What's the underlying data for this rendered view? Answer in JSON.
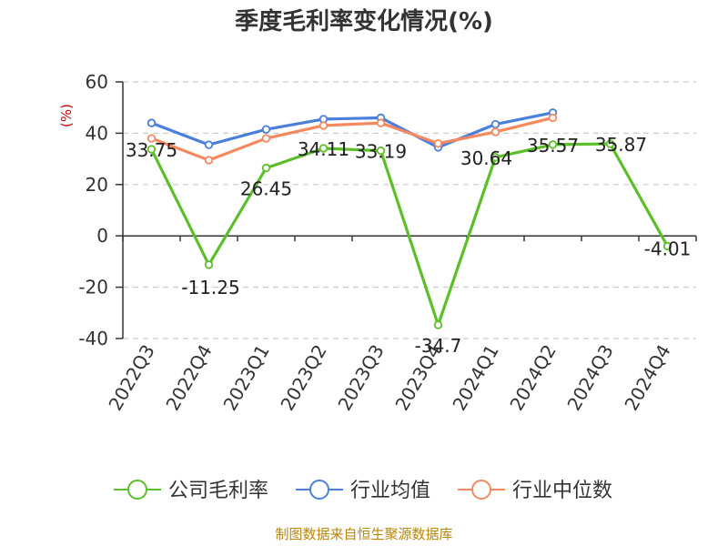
{
  "chart_data": {
    "type": "line",
    "title": "季度毛利率变化情况(%)",
    "ylabel": "(%)",
    "xlabel": "",
    "categories": [
      "2022Q3",
      "2022Q4",
      "2023Q1",
      "2023Q2",
      "2023Q3",
      "2023Q4",
      "2024Q1",
      "2024Q2",
      "2024Q3",
      "2024Q4"
    ],
    "ylim": [
      -40,
      60
    ],
    "yticks": [
      60,
      40,
      20,
      0,
      -20,
      -40
    ],
    "grid": true,
    "legend_position": "bottom",
    "series": [
      {
        "name": "公司毛利率",
        "color": "#5cbf2a",
        "values": [
          33.75,
          -11.25,
          26.45,
          34.11,
          33.19,
          -34.7,
          30.64,
          35.57,
          35.87,
          -4.01
        ],
        "labels": [
          "33.75",
          "-11.25",
          "26.45",
          "34.11",
          "33.19",
          "-34.7",
          "30.64",
          "35.57",
          "35.87",
          "-4.01"
        ]
      },
      {
        "name": "行业均值",
        "color": "#4a7fdc",
        "values": [
          44,
          35.5,
          41.5,
          45.5,
          46,
          34.5,
          43.5,
          48,
          null,
          null
        ]
      },
      {
        "name": "行业中位数",
        "color": "#f4895f",
        "values": [
          38,
          29.5,
          38,
          43,
          44,
          36,
          40.5,
          46,
          null,
          null
        ]
      }
    ]
  },
  "source": "制图数据来自恒生聚源数据库"
}
